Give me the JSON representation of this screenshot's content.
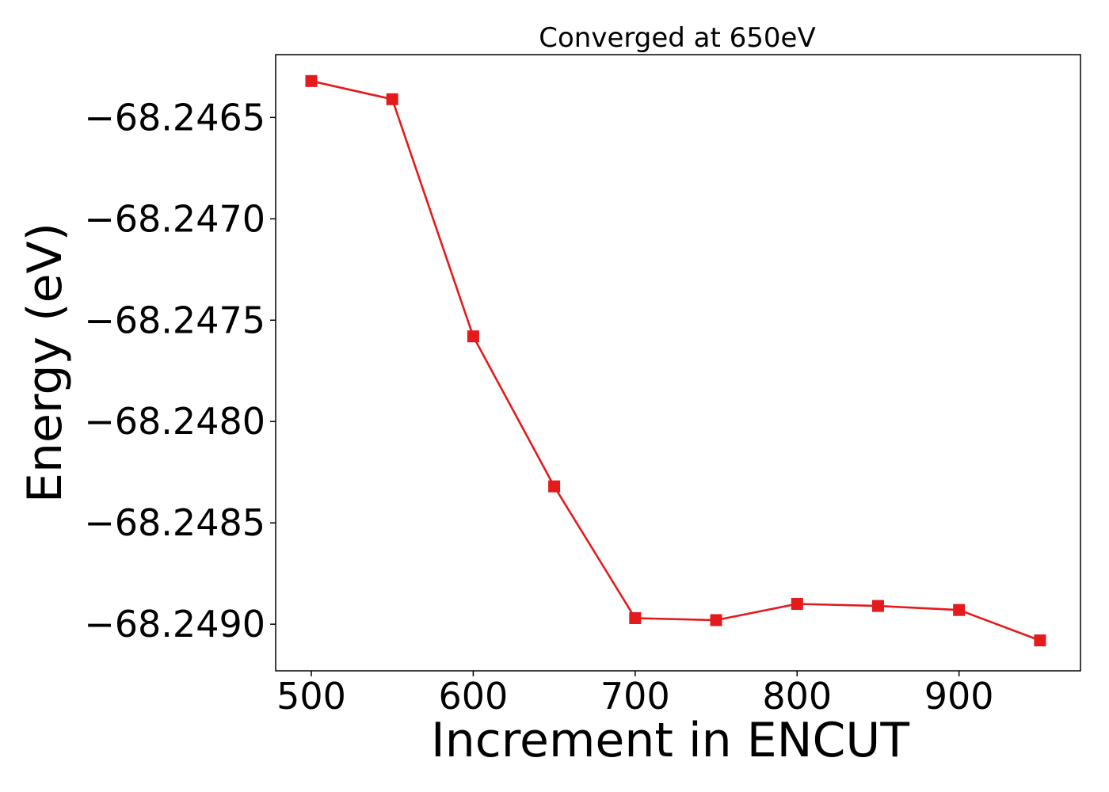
{
  "chart_data": {
    "type": "line",
    "title": "Converged at 650eV",
    "xlabel": "Increment in ENCUT",
    "ylabel": "Energy (eV)",
    "x": [
      500,
      550,
      600,
      650,
      700,
      750,
      800,
      850,
      900,
      950
    ],
    "series": [
      {
        "values": [
          -68.24632,
          -68.24641,
          -68.24758,
          -68.24832,
          -68.24897,
          -68.24898,
          -68.2489,
          -68.24891,
          -68.24893,
          -68.24908
        ],
        "color": "#e41a1c",
        "marker": "square"
      }
    ],
    "xticks": [
      500,
      600,
      700,
      800,
      900
    ],
    "xtick_labels": [
      "500",
      "600",
      "700",
      "800",
      "900"
    ],
    "yticks": [
      -68.2465,
      -68.247,
      -68.2475,
      -68.248,
      -68.2485,
      -68.249
    ],
    "ytick_labels": [
      "−68.2465",
      "−68.2470",
      "−68.2475",
      "−68.2480",
      "−68.2485",
      "−68.2490"
    ],
    "xlim": [
      478,
      975
    ],
    "ylim": [
      -68.24923,
      -68.24619
    ],
    "grid": false,
    "legend": "none"
  }
}
